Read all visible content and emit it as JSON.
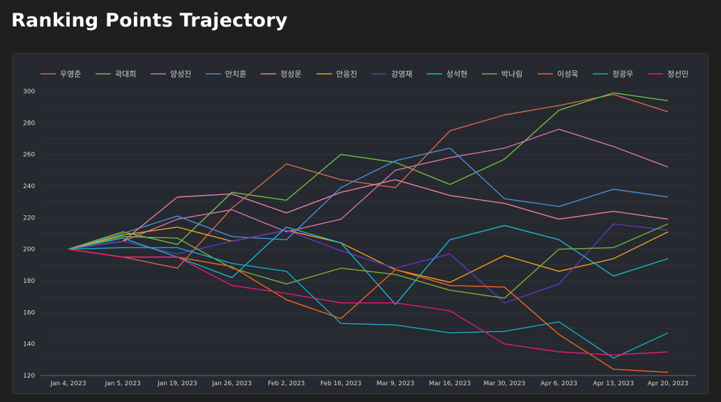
{
  "page": {
    "title": "Ranking Points Trajectory"
  },
  "chart_data": {
    "type": "line",
    "title": "",
    "xlabel": "",
    "ylabel": "",
    "ylim": [
      120,
      300
    ],
    "yticks": [
      120,
      140,
      160,
      180,
      200,
      220,
      240,
      260,
      280,
      300
    ],
    "grid": true,
    "legend": "top",
    "categories": [
      "Jan 4, 2023",
      "Jan 5, 2023",
      "Jan 19, 2023",
      "Jan 26, 2023",
      "Feb 2, 2023",
      "Feb 16, 2023",
      "Mar 9, 2023",
      "Mar 16, 2023",
      "Mar 30, 2023",
      "Apr 6, 2023",
      "Apr 13, 2023",
      "Apr 20, 2023"
    ],
    "series": [
      {
        "name": "우영준",
        "color": "#d9694a",
        "values": [
          200,
          195,
          188,
          226,
          254,
          244,
          239,
          275,
          285,
          291,
          298,
          287
        ]
      },
      {
        "name": "곽대희",
        "color": "#6cc24a",
        "values": [
          200,
          211,
          203,
          236,
          231,
          260,
          255,
          241,
          257,
          288,
          299,
          294
        ]
      },
      {
        "name": "양성진",
        "color": "#d872b0",
        "values": [
          200,
          205,
          219,
          225,
          211,
          219,
          250,
          258,
          264,
          276,
          265,
          252
        ]
      },
      {
        "name": "안치훈",
        "color": "#4a8fd6",
        "values": [
          200,
          210,
          221,
          208,
          206,
          239,
          256,
          264,
          232,
          227,
          238,
          233
        ]
      },
      {
        "name": "정성운",
        "color": "#ec7fa6",
        "values": [
          200,
          205,
          233,
          235,
          223,
          236,
          244,
          234,
          229,
          219,
          224,
          219
        ]
      },
      {
        "name": "안응진",
        "color": "#f5a01c",
        "values": [
          200,
          209,
          214,
          205,
          212,
          204,
          187,
          179,
          196,
          186,
          194,
          211
        ]
      },
      {
        "name": "강영재",
        "color": "#6236c4",
        "values": [
          200,
          205,
          197,
          205,
          212,
          199,
          188,
          197,
          166,
          178,
          216,
          212
        ]
      },
      {
        "name": "성석현",
        "color": "#19b8d0",
        "values": [
          200,
          207,
          195,
          182,
          214,
          204,
          165,
          206,
          215,
          206,
          183,
          194
        ]
      },
      {
        "name": "박나림",
        "color": "#7cb23c",
        "values": [
          200,
          208,
          207,
          188,
          178,
          188,
          184,
          174,
          169,
          200,
          201,
          216
        ]
      },
      {
        "name": "이성욱",
        "color": "#f8651a",
        "values": [
          200,
          195,
          195,
          189,
          168,
          156,
          187,
          177,
          176,
          146,
          124,
          122
        ]
      },
      {
        "name": "정광우",
        "color": "#13aec8",
        "values": [
          200,
          201,
          201,
          191,
          186,
          153,
          152,
          147,
          148,
          154,
          131,
          147
        ]
      },
      {
        "name": "정선민",
        "color": "#e8197a",
        "values": [
          200,
          195,
          195,
          177,
          172,
          166,
          166,
          161,
          140,
          135,
          133,
          135
        ]
      }
    ]
  }
}
